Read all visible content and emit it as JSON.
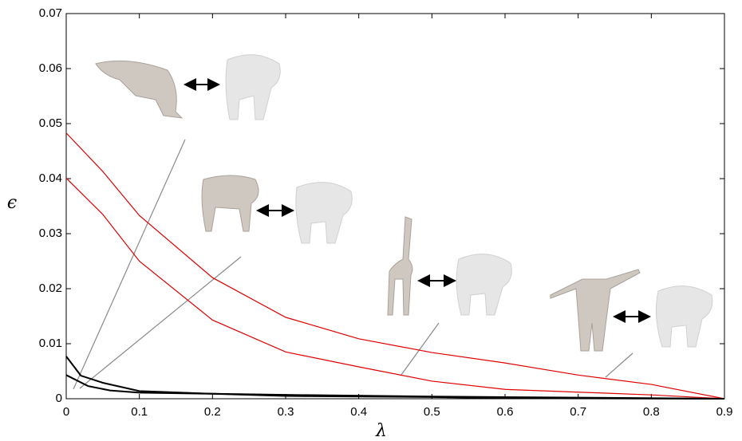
{
  "chart_data": {
    "type": "line",
    "x_label": "λ",
    "y_label": "ϵ",
    "xlim": [
      0,
      0.9
    ],
    "xticks": [
      0,
      0.1,
      0.2,
      0.3,
      0.4,
      0.5,
      0.6,
      0.7,
      0.8,
      0.9
    ],
    "ylim": [
      0,
      0.07
    ],
    "yticks": [
      0,
      0.01,
      0.02,
      0.03,
      0.04,
      0.05,
      0.06,
      0.07
    ],
    "grid": false,
    "series": [
      {
        "color": "#e00000",
        "x": [
          0,
          0.05,
          0.1,
          0.2,
          0.3,
          0.4,
          0.5,
          0.6,
          0.7,
          0.8,
          0.9
        ],
        "values": [
          0.0483,
          0.0413,
          0.0333,
          0.022,
          0.0148,
          0.0109,
          0.0084,
          0.0065,
          0.0043,
          0.0026,
          0
        ]
      },
      {
        "color": "#e00000",
        "x": [
          0,
          0.05,
          0.1,
          0.2,
          0.3,
          0.4,
          0.5,
          0.6,
          0.7,
          0.8,
          0.9
        ],
        "values": [
          0.0401,
          0.0335,
          0.025,
          0.0143,
          0.0085,
          0.0058,
          0.0032,
          0.0017,
          0.0012,
          0.0007,
          0
        ]
      },
      {
        "color": "#000000",
        "x": [
          0,
          0.02,
          0.05,
          0.1,
          0.2,
          0.3,
          0.5,
          0.6,
          0.9
        ],
        "values": [
          0.0077,
          0.0042,
          0.0029,
          0.0014,
          0.0009,
          0.0005,
          0.0003,
          0.0001,
          0
        ]
      },
      {
        "color": "#000000",
        "x": [
          0,
          0.03,
          0.06,
          0.1,
          0.2,
          0.3,
          0.5,
          0.9
        ],
        "values": [
          0.0043,
          0.0023,
          0.0015,
          0.0011,
          0.0009,
          0.0007,
          0.0004,
          0
        ]
      }
    ]
  }
}
